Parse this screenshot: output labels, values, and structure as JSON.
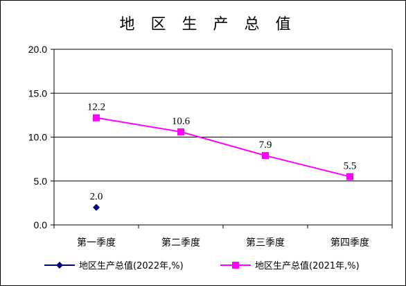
{
  "chart_data": {
    "type": "line",
    "title": "地 区 生 产 总 值",
    "categories": [
      "第一季度",
      "第二季度",
      "第三季度",
      "第四季度"
    ],
    "ylim": [
      0,
      20
    ],
    "yticks": [
      "0.0",
      "5.0",
      "10.0",
      "15.0",
      "20.0"
    ],
    "grid": true,
    "legend_position": "bottom",
    "series": [
      {
        "name": "地区生产总值(2022年,%)",
        "values": [
          2.0,
          null,
          null,
          null
        ],
        "labels": [
          "2.0",
          "",
          "",
          ""
        ],
        "color": "#000080",
        "marker": "diamond"
      },
      {
        "name": "地区生产总值(2021年,%)",
        "values": [
          12.2,
          10.6,
          7.9,
          5.5
        ],
        "labels": [
          "12.2",
          "10.6",
          "7.9",
          "5.5"
        ],
        "color": "#ff00ff",
        "marker": "square"
      }
    ]
  }
}
